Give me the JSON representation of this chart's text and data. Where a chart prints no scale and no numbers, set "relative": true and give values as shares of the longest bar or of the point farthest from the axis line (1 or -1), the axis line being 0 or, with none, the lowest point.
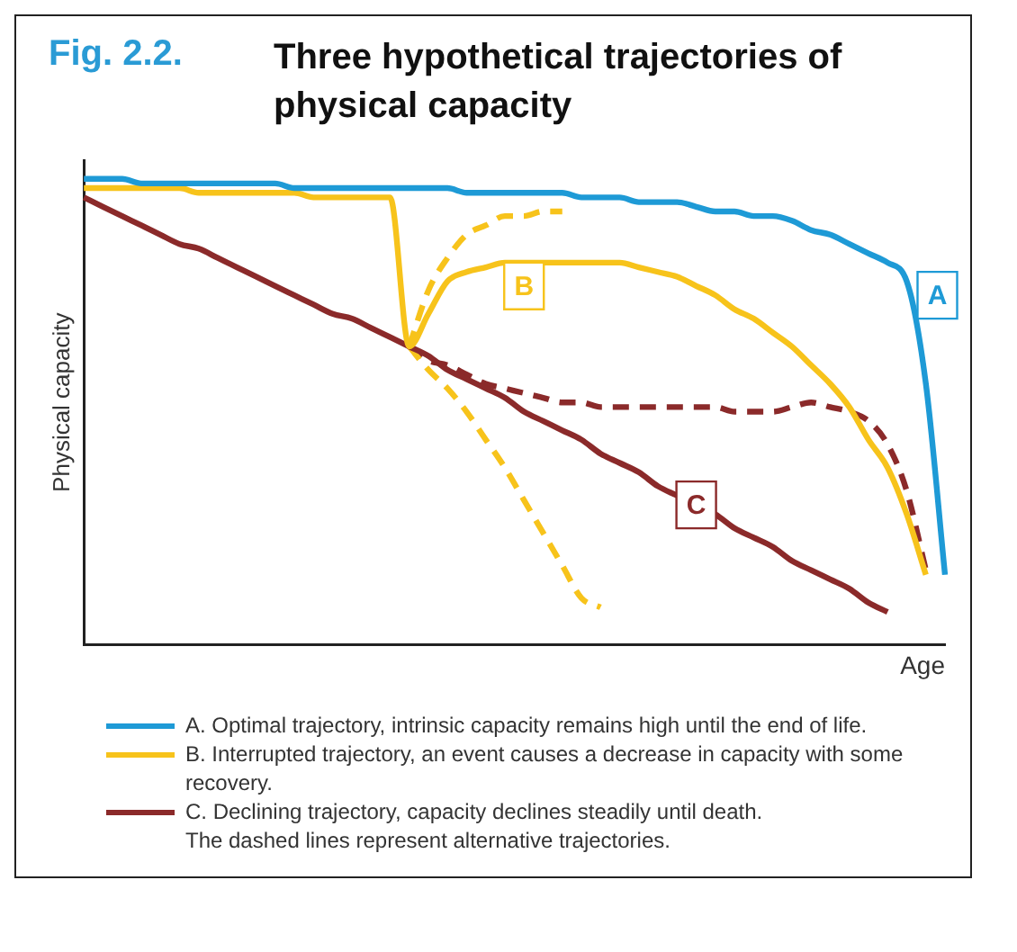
{
  "chart_data": {
    "type": "line",
    "title": "Three hypothetical trajectories of physical capacity",
    "xlabel": "Age",
    "ylabel": "Physical capacity",
    "relative": true,
    "grid": false,
    "legend": "bottom",
    "marker": "none",
    "annotations": [
      "Fig. 2.2.",
      "A",
      "B",
      "C",
      "The dashed lines represent alternative trajectories."
    ],
    "categories": [
      null,
      null,
      null,
      null,
      null,
      null,
      null,
      null,
      null,
      null,
      null,
      null,
      null,
      null,
      null,
      null,
      null,
      null,
      null,
      null,
      null,
      null,
      null,
      null,
      null,
      null,
      null,
      null,
      null,
      null,
      null,
      null,
      null,
      null,
      null,
      null,
      null,
      null,
      null,
      null,
      null,
      null,
      null,
      null,
      null,
      null
    ],
    "series": [
      {
        "name": "A.  Optimal trajectory, intrinsic capacity remains high until the end of life.",
        "color": "#1e9ad6",
        "line_style": "solid",
        "values": [
          1.0,
          1.0,
          1.0,
          0.99,
          0.99,
          0.99,
          0.99,
          0.99,
          0.99,
          0.99,
          0.99,
          0.98,
          0.98,
          0.98,
          0.98,
          0.98,
          0.98,
          0.98,
          0.98,
          0.98,
          0.97,
          0.97,
          0.97,
          0.97,
          0.97,
          0.97,
          0.96,
          0.96,
          0.96,
          0.95,
          0.95,
          0.95,
          0.94,
          0.93,
          0.93,
          0.92,
          0.92,
          0.91,
          0.89,
          0.88,
          0.86,
          0.84,
          0.82,
          0.78,
          0.56,
          0.15
        ]
      },
      {
        "name": "B.  Interrupted trajectory, an event causes a decrease in capacity with some recovery.",
        "color": "#f7c31b",
        "line_style": "solid",
        "values": [
          0.98,
          0.98,
          0.98,
          0.98,
          0.98,
          0.98,
          0.97,
          0.97,
          0.97,
          0.97,
          0.97,
          0.97,
          0.96,
          0.96,
          0.96,
          0.96,
          0.96,
          0.64,
          0.71,
          0.78,
          0.8,
          0.81,
          0.82,
          0.82,
          0.82,
          0.82,
          0.82,
          0.82,
          0.82,
          0.81,
          0.8,
          0.79,
          0.77,
          0.75,
          0.72,
          0.7,
          0.67,
          0.64,
          0.6,
          0.56,
          0.51,
          0.44,
          0.38,
          0.28,
          0.15,
          null
        ]
      },
      {
        "name": "C.  Declining trajectory, capacity declines steadily until death.",
        "color": "#8b2a2a",
        "line_style": "solid",
        "values": [
          0.96,
          0.94,
          0.92,
          0.9,
          0.88,
          0.86,
          0.85,
          0.83,
          0.81,
          0.79,
          0.77,
          0.75,
          0.73,
          0.71,
          0.7,
          0.68,
          0.66,
          0.64,
          0.62,
          0.59,
          0.57,
          0.55,
          0.53,
          0.5,
          0.48,
          0.46,
          0.44,
          0.41,
          0.39,
          0.37,
          0.34,
          0.32,
          0.3,
          0.28,
          0.25,
          0.23,
          0.21,
          0.18,
          0.16,
          0.14,
          0.12,
          0.09,
          0.07,
          null,
          null,
          null
        ]
      },
      {
        "color": "#f7c31b",
        "line_style": "dashed",
        "values": [
          null,
          null,
          null,
          null,
          null,
          null,
          null,
          null,
          null,
          null,
          null,
          null,
          null,
          null,
          null,
          null,
          null,
          0.64,
          0.76,
          0.83,
          0.88,
          0.9,
          0.92,
          0.92,
          0.93,
          0.93,
          null,
          null,
          null,
          null,
          null,
          null,
          null,
          null,
          null,
          null,
          null,
          null,
          null,
          null,
          null,
          null,
          null,
          null,
          null,
          null
        ]
      },
      {
        "color": "#f7c31b",
        "line_style": "dashed",
        "values": [
          null,
          null,
          null,
          null,
          null,
          null,
          null,
          null,
          null,
          null,
          null,
          null,
          null,
          null,
          null,
          null,
          null,
          0.64,
          0.59,
          0.55,
          0.5,
          0.44,
          0.38,
          0.31,
          0.24,
          0.17,
          0.1,
          0.08,
          null,
          null,
          null,
          null,
          null,
          null,
          null,
          null,
          null,
          null,
          null,
          null,
          null,
          null,
          null,
          null,
          null,
          null
        ]
      },
      {
        "color": "#8b2a2a",
        "line_style": "dashed",
        "values": [
          null,
          null,
          null,
          null,
          null,
          null,
          null,
          null,
          null,
          null,
          null,
          null,
          null,
          null,
          null,
          null,
          null,
          0.64,
          0.61,
          0.6,
          0.58,
          0.56,
          0.55,
          0.54,
          0.53,
          0.52,
          0.52,
          0.51,
          0.51,
          0.51,
          0.51,
          0.51,
          0.51,
          0.51,
          0.5,
          0.5,
          0.5,
          0.51,
          0.52,
          0.51,
          0.5,
          0.48,
          0.43,
          0.33,
          0.16,
          null
        ]
      }
    ]
  }
}
